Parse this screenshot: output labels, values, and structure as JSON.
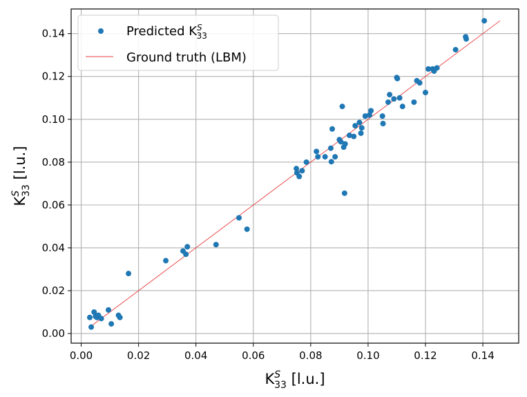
{
  "chart_data": {
    "type": "scatter",
    "title": "",
    "xlabel": {
      "base": "K",
      "sup": "S",
      "sub": "33",
      "unit": " [l.u.]"
    },
    "ylabel": {
      "base": "K",
      "sup": "S",
      "sub": "33",
      "unit": " [l.u.]"
    },
    "xlim": [
      -0.0035,
      0.1525
    ],
    "ylim": [
      -0.0045,
      0.1515
    ],
    "xticks": [
      0.0,
      0.02,
      0.04,
      0.06,
      0.08,
      0.1,
      0.12,
      0.14
    ],
    "xtick_labels": [
      "0.00",
      "0.02",
      "0.04",
      "0.06",
      "0.08",
      "0.10",
      "0.12",
      "0.14"
    ],
    "yticks": [
      0.0,
      0.02,
      0.04,
      0.06,
      0.08,
      0.1,
      0.12,
      0.14
    ],
    "ytick_labels": [
      "0.00",
      "0.02",
      "0.04",
      "0.06",
      "0.08",
      "0.10",
      "0.12",
      "0.14"
    ],
    "grid": true,
    "legend": {
      "placement": "top-left",
      "entries": [
        {
          "label": {
            "base": "Predicted K",
            "sup": "S",
            "sub": "33"
          },
          "marker": "dot",
          "color": "#1f77b4"
        },
        {
          "label": {
            "base": "Ground truth (LBM)"
          },
          "marker": "line",
          "color": "#e8393a"
        }
      ]
    },
    "series": [
      {
        "name": "Predicted K^S_33",
        "kind": "scatter",
        "color": "#1f77b4",
        "points": [
          [
            0.003,
            0.0075
          ],
          [
            0.0035,
            0.003
          ],
          [
            0.0045,
            0.01
          ],
          [
            0.005,
            0.008
          ],
          [
            0.0055,
            0.0075
          ],
          [
            0.006,
            0.0085
          ],
          [
            0.007,
            0.007
          ],
          [
            0.0095,
            0.011
          ],
          [
            0.0105,
            0.0045
          ],
          [
            0.013,
            0.0085
          ],
          [
            0.0135,
            0.0075
          ],
          [
            0.0165,
            0.028
          ],
          [
            0.0295,
            0.034
          ],
          [
            0.0355,
            0.0385
          ],
          [
            0.0365,
            0.037
          ],
          [
            0.037,
            0.0405
          ],
          [
            0.047,
            0.0415
          ],
          [
            0.055,
            0.054
          ],
          [
            0.0578,
            0.0487
          ],
          [
            0.075,
            0.077
          ],
          [
            0.0752,
            0.075
          ],
          [
            0.076,
            0.0733
          ],
          [
            0.077,
            0.076
          ],
          [
            0.0785,
            0.08
          ],
          [
            0.082,
            0.085
          ],
          [
            0.0825,
            0.0825
          ],
          [
            0.085,
            0.0825
          ],
          [
            0.087,
            0.0865
          ],
          [
            0.0872,
            0.0802
          ],
          [
            0.0875,
            0.0955
          ],
          [
            0.0885,
            0.0825
          ],
          [
            0.09,
            0.0905
          ],
          [
            0.0905,
            0.0895
          ],
          [
            0.091,
            0.106
          ],
          [
            0.0915,
            0.087
          ],
          [
            0.092,
            0.0885
          ],
          [
            0.0918,
            0.0655
          ],
          [
            0.0935,
            0.0925
          ],
          [
            0.095,
            0.092
          ],
          [
            0.0955,
            0.097
          ],
          [
            0.097,
            0.0985
          ],
          [
            0.0975,
            0.0935
          ],
          [
            0.0978,
            0.096
          ],
          [
            0.099,
            0.1015
          ],
          [
            0.1005,
            0.102
          ],
          [
            0.101,
            0.104
          ],
          [
            0.105,
            0.1015
          ],
          [
            0.1052,
            0.098
          ],
          [
            0.107,
            0.108
          ],
          [
            0.1075,
            0.1115
          ],
          [
            0.109,
            0.1095
          ],
          [
            0.11,
            0.1195
          ],
          [
            0.1102,
            0.119
          ],
          [
            0.111,
            0.11
          ],
          [
            0.112,
            0.106
          ],
          [
            0.116,
            0.108
          ],
          [
            0.117,
            0.118
          ],
          [
            0.118,
            0.117
          ],
          [
            0.12,
            0.1125
          ],
          [
            0.121,
            0.1235
          ],
          [
            0.1225,
            0.1235
          ],
          [
            0.123,
            0.1225
          ],
          [
            0.124,
            0.124
          ],
          [
            0.1305,
            0.1325
          ],
          [
            0.134,
            0.1385
          ],
          [
            0.1342,
            0.1375
          ],
          [
            0.1405,
            0.146
          ]
        ]
      },
      {
        "name": "Ground truth (LBM)",
        "kind": "line",
        "color": "#e8393a",
        "points": [
          [
            0.003,
            0.003
          ],
          [
            0.146,
            0.146
          ]
        ]
      }
    ]
  }
}
